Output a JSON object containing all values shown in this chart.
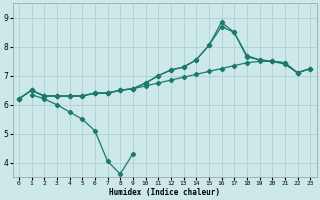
{
  "xlabel": "Humidex (Indice chaleur)",
  "ylabel": "",
  "bg_color": "#cce8e8",
  "grid_color": "#aacccc",
  "line_color": "#1a7a6e",
  "xlim": [
    -0.5,
    23.5
  ],
  "ylim": [
    3.5,
    9.5
  ],
  "xticks": [
    0,
    1,
    2,
    3,
    4,
    5,
    6,
    7,
    8,
    9,
    10,
    11,
    12,
    13,
    14,
    15,
    16,
    17,
    18,
    19,
    20,
    21,
    22,
    23
  ],
  "yticks": [
    4,
    5,
    6,
    7,
    8,
    9
  ],
  "line1_x": [
    0,
    1,
    2,
    3,
    4,
    5,
    6,
    7,
    8,
    9,
    10,
    11,
    12,
    13,
    14,
    15,
    16,
    17,
    18,
    19,
    20,
    21,
    22,
    23
  ],
  "line1_y": [
    6.2,
    6.5,
    6.3,
    6.3,
    6.3,
    6.3,
    6.4,
    6.4,
    6.5,
    6.55,
    6.65,
    6.75,
    6.85,
    6.95,
    7.05,
    7.15,
    7.25,
    7.35,
    7.45,
    7.5,
    7.5,
    7.4,
    7.1,
    7.25
  ],
  "line2_x": [
    0,
    1,
    2,
    3,
    4,
    5,
    6,
    7,
    8,
    9,
    10,
    11,
    12,
    13,
    14,
    15,
    16,
    17,
    18,
    19,
    20,
    21,
    22,
    23
  ],
  "line2_y": [
    6.2,
    6.5,
    6.3,
    6.3,
    6.3,
    6.3,
    6.4,
    6.4,
    6.5,
    6.55,
    6.75,
    7.0,
    7.2,
    7.3,
    7.55,
    8.05,
    8.7,
    8.5,
    7.7,
    7.55,
    7.5,
    7.45,
    7.1,
    7.25
  ],
  "line3_x": [
    0,
    1,
    2,
    3,
    4,
    5,
    6,
    7,
    8,
    9,
    10,
    11,
    12,
    13,
    14,
    15,
    16,
    17,
    18,
    19,
    20,
    21,
    22,
    23
  ],
  "line3_y": [
    6.2,
    6.5,
    6.3,
    6.3,
    6.3,
    6.3,
    6.4,
    6.4,
    6.5,
    6.55,
    6.75,
    7.0,
    7.2,
    7.3,
    7.55,
    8.05,
    8.85,
    8.5,
    7.65,
    7.55,
    7.5,
    7.45,
    7.1,
    7.25
  ],
  "line4_x": [
    1,
    2,
    3,
    4,
    5,
    6,
    7,
    8,
    9
  ],
  "line4_y": [
    6.35,
    6.2,
    6.0,
    5.75,
    5.5,
    5.1,
    4.05,
    3.6,
    4.3
  ],
  "marker": "D",
  "markersize": 2.2,
  "linewidth": 0.9
}
